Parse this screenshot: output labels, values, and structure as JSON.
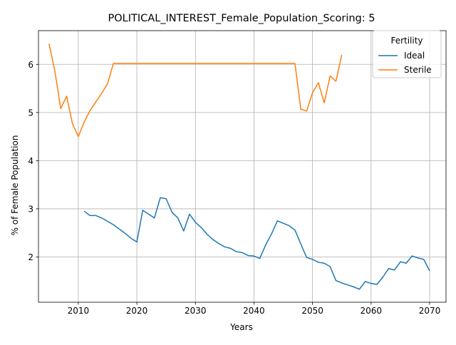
{
  "chart_data": {
    "type": "line",
    "title": "POLITICAL_INTEREST_Female_Population_Scoring: 5",
    "xlabel": "Years",
    "ylabel": "% of Female Population",
    "xlim": [
      2003.2,
      2072.8
    ],
    "ylim": [
      1.06,
      6.7
    ],
    "xticks": [
      2010,
      2020,
      2030,
      2040,
      2050,
      2060,
      2070
    ],
    "yticks": [
      2,
      3,
      4,
      5,
      6
    ],
    "grid": true,
    "legend": {
      "title": "Fertility",
      "placement": "top-right"
    },
    "colors": {
      "Ideal": "#1f77b4",
      "Sterile": "#ff7f0e"
    },
    "series": [
      {
        "name": "Ideal",
        "x": [
          2011,
          2012,
          2013,
          2014,
          2015,
          2016,
          2017,
          2018,
          2019,
          2020,
          2021,
          2022,
          2023,
          2024,
          2025,
          2026,
          2027,
          2028,
          2029,
          2030,
          2031,
          2032,
          2033,
          2034,
          2035,
          2036,
          2037,
          2038,
          2039,
          2040,
          2041,
          2042,
          2043,
          2044,
          2045,
          2046,
          2047,
          2048,
          2049,
          2050,
          2051,
          2052,
          2053,
          2054,
          2055,
          2056,
          2057,
          2058,
          2059,
          2060,
          2061,
          2062,
          2063,
          2064,
          2065,
          2066,
          2067,
          2068,
          2069,
          2070
        ],
        "y": [
          2.95,
          2.86,
          2.86,
          2.81,
          2.74,
          2.67,
          2.58,
          2.49,
          2.39,
          2.31,
          2.97,
          2.89,
          2.81,
          3.23,
          3.21,
          2.93,
          2.81,
          2.54,
          2.89,
          2.72,
          2.61,
          2.47,
          2.36,
          2.28,
          2.21,
          2.18,
          2.11,
          2.09,
          2.03,
          2.02,
          1.97,
          2.25,
          2.48,
          2.75,
          2.7,
          2.65,
          2.56,
          2.27,
          1.99,
          1.95,
          1.89,
          1.87,
          1.8,
          1.51,
          1.46,
          1.42,
          1.38,
          1.33,
          1.49,
          1.45,
          1.43,
          1.58,
          1.76,
          1.73,
          1.9,
          1.87,
          2.02,
          1.98,
          1.95,
          1.71
        ]
      },
      {
        "name": "Sterile",
        "x": [
          2005,
          2006,
          2007,
          2008,
          2009,
          2010,
          2011,
          2012,
          2013,
          2014,
          2015,
          2016,
          2017,
          2018,
          2019,
          2020,
          2021,
          2022,
          2023,
          2024,
          2025,
          2026,
          2027,
          2028,
          2029,
          2030,
          2031,
          2032,
          2033,
          2034,
          2035,
          2036,
          2037,
          2038,
          2039,
          2040,
          2041,
          2042,
          2043,
          2044,
          2045,
          2046,
          2047,
          2048,
          2049,
          2050,
          2051,
          2052,
          2053,
          2054,
          2055
        ],
        "y": [
          6.43,
          5.86,
          5.08,
          5.34,
          4.77,
          4.5,
          4.8,
          5.04,
          5.22,
          5.4,
          5.6,
          6.02,
          6.02,
          6.02,
          6.02,
          6.02,
          6.02,
          6.02,
          6.02,
          6.02,
          6.02,
          6.02,
          6.02,
          6.02,
          6.02,
          6.02,
          6.02,
          6.02,
          6.02,
          6.02,
          6.02,
          6.02,
          6.02,
          6.02,
          6.02,
          6.02,
          6.02,
          6.02,
          6.02,
          6.02,
          6.02,
          6.02,
          6.02,
          5.07,
          5.03,
          5.41,
          5.62,
          5.2,
          5.76,
          5.65,
          6.2
        ]
      }
    ]
  }
}
